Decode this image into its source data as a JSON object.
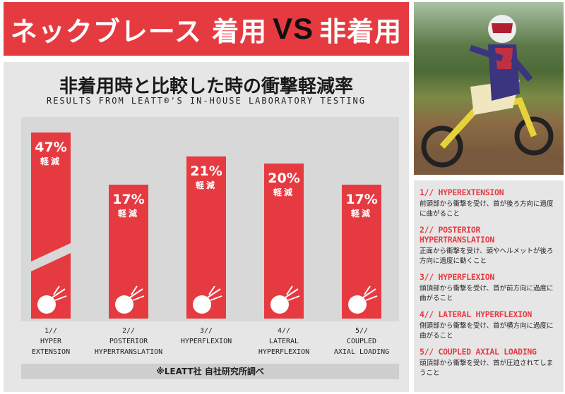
{
  "banner": {
    "left": "ネックブレース 着用",
    "vs": "VS",
    "right": "非着用"
  },
  "chart_data": {
    "type": "bar",
    "title": "非着用時と比較した時の衝撃軽減率",
    "subtitle": "RESULTS FROM LEATT®'S IN-HOUSE LABORATORY TESTING",
    "categories": [
      "1// HYPER EXTENSION",
      "2// POSTERIOR HYPERTRANSLATION",
      "3// HYPERFLEXION",
      "4// LATERAL HYPERFLEXION",
      "5// COUPLED AXIAL LOADING"
    ],
    "values": [
      47,
      17,
      21,
      20,
      17
    ],
    "value_labels": [
      "47%",
      "17%",
      "21%",
      "20%",
      "17%"
    ],
    "unit_label": "軽減",
    "axis_break": true,
    "accent": "#e63a41",
    "note": "※LEATT社 自社研究所調べ"
  },
  "categories_display": [
    [
      "1//",
      "HYPER",
      "EXTENSION"
    ],
    [
      "2//",
      "POSTERIOR",
      "HYPERTRANSLATION"
    ],
    [
      "3//",
      "HYPERFLEXION",
      ""
    ],
    [
      "4//",
      "LATERAL",
      "HYPERFLEXION"
    ],
    [
      "5//",
      "COUPLED",
      "AXIAL LOADING"
    ]
  ],
  "side": {
    "items": [
      {
        "title": "1// HYPEREXTENSION",
        "desc": "前頭部から衝撃を受け、首が後ろ方向に過度に曲がること"
      },
      {
        "title": "2// POSTERIOR HYPERTRANSLATION",
        "desc": "正面から衝撃を受け、頭やヘルメットが後ろ方向に過度に動くこと"
      },
      {
        "title": "3// HYPERFLEXION",
        "desc": "頭頂部から衝撃を受け、首が前方向に過度に曲がること"
      },
      {
        "title": "4// LATERAL HYPERFLEXION",
        "desc": "側頭部から衝撃を受け、首が横方向に過度に曲がること"
      },
      {
        "title": "5// COUPLED AXIAL LOADING",
        "desc": "頭頂部から衝撃を受け、首が圧迫されてしまうこと"
      }
    ]
  }
}
